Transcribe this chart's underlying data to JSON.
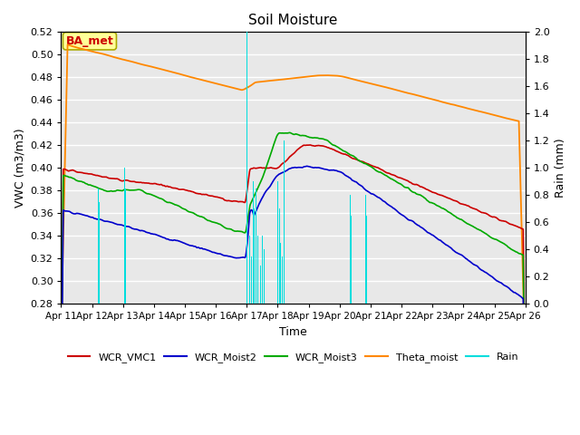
{
  "title": "Soil Moisture",
  "xlabel": "Time",
  "ylabel_left": "VWC (m3/m3)",
  "ylabel_right": "Rain (mm)",
  "ylim_left": [
    0.28,
    0.52
  ],
  "ylim_right": [
    0.0,
    2.0
  ],
  "yticks_left": [
    0.28,
    0.3,
    0.32,
    0.34,
    0.36,
    0.38,
    0.4,
    0.42,
    0.44,
    0.46,
    0.48,
    0.5,
    0.52
  ],
  "yticks_right": [
    0.0,
    0.2,
    0.4,
    0.6,
    0.8,
    1.0,
    1.2,
    1.4,
    1.6,
    1.8,
    2.0
  ],
  "xtick_labels": [
    "Apr 11",
    "Apr 12",
    "Apr 13",
    "Apr 14",
    "Apr 15",
    "Apr 16",
    "Apr 17",
    "Apr 18",
    "Apr 19",
    "Apr 20",
    "Apr 21",
    "Apr 22",
    "Apr 23",
    "Apr 24",
    "Apr 25",
    "Apr 26"
  ],
  "background_color": "#e8e8e8",
  "grid_color": "#ffffff",
  "colors": {
    "WCR_VMC1": "#cc0000",
    "WCR_Moist2": "#0000cc",
    "WCR_Moist3": "#00aa00",
    "Theta_moist": "#ff8800",
    "Rain": "#00dddd"
  },
  "annotation_text": "BA_met",
  "annotation_color": "#cc0000",
  "annotation_bg": "#ffff99",
  "annotation_border": "#aaaa00"
}
